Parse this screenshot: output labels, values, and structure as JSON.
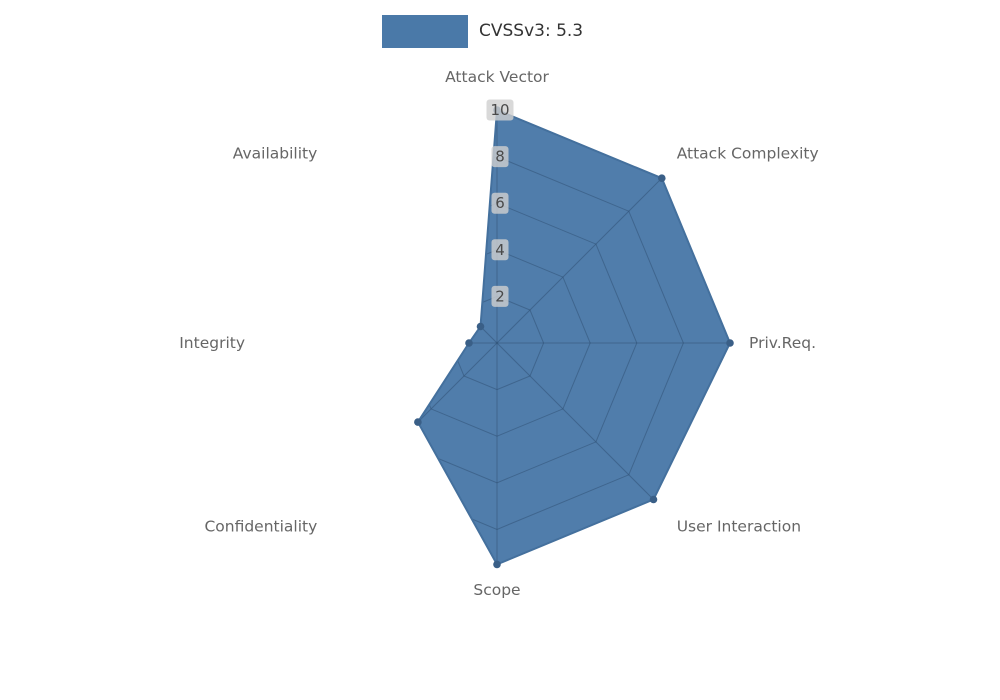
{
  "legend": {
    "label": "CVSSv3: 5.3"
  },
  "chart_data": {
    "type": "radar",
    "title": "CVSSv3: 5.3",
    "categories": [
      "Attack Vector",
      "Attack Complexity",
      "Priv.Req.",
      "User Interaction",
      "Scope",
      "Confidentiality",
      "Integrity",
      "Availability"
    ],
    "series": [
      {
        "name": "CVSSv3: 5.3",
        "values": [
          10,
          10,
          10,
          9.5,
          9.5,
          4.8,
          1.2,
          1.0
        ]
      }
    ],
    "radial_ticks": [
      2,
      4,
      6,
      8,
      10
    ],
    "rlim": [
      0,
      10
    ],
    "direction": "clockwise",
    "start_axis": "top",
    "legend_position": "top-center",
    "grid": "on",
    "colors": {
      "fill": "#4a79a8",
      "outline": "#44709d",
      "marker": "#3a5f87",
      "grid": "#2b4a6b",
      "tick_bg": "#cfcfcf",
      "tick_text": "#4a4a4a",
      "axis_label": "#666666",
      "legend_text": "#333333"
    }
  }
}
